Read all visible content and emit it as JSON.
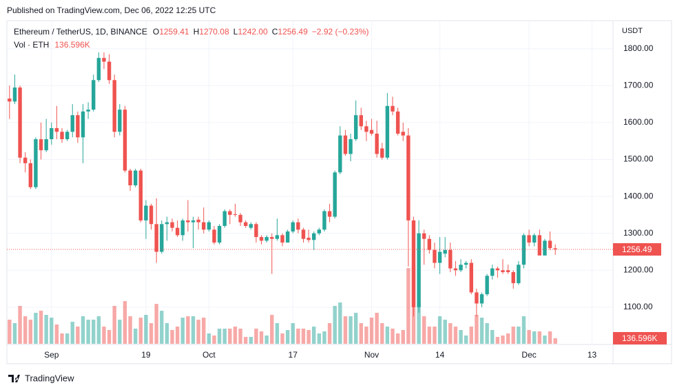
{
  "published": "Published on TradingView.com, Dec 06, 2022 12:25 UTC",
  "brand": "TradingView",
  "chart_data": {
    "type": "candlestick",
    "symbol": "Ethereum / TetherUS, 1D, BINANCE",
    "ohlc_legend": [
      {
        "key": "O",
        "text": "1259.41"
      },
      {
        "key": "H",
        "text": "1270.08"
      },
      {
        "key": "L",
        "text": "1242.00"
      },
      {
        "key": "C",
        "text": "1256.49"
      }
    ],
    "change": "−2.92 (−0.23%)",
    "volume_title": "Vol · ETH",
    "volume_legend": "136.596K",
    "y_axis_label": "USDT",
    "up_color": "#26a69a",
    "down_color": "#ef5350",
    "up_volume_color": "#26a69a80",
    "down_volume_color": "#ef535080",
    "grid": true,
    "x": [
      "2022-08-24",
      "2022-08-25",
      "2022-08-26",
      "2022-08-27",
      "2022-08-28",
      "2022-08-29",
      "2022-08-30",
      "2022-08-31",
      "2022-09-01",
      "2022-09-02",
      "2022-09-03",
      "2022-09-04",
      "2022-09-05",
      "2022-09-06",
      "2022-09-07",
      "2022-09-08",
      "2022-09-09",
      "2022-09-10",
      "2022-09-11",
      "2022-09-12",
      "2022-09-13",
      "2022-09-14",
      "2022-09-15",
      "2022-09-16",
      "2022-09-17",
      "2022-09-18",
      "2022-09-19",
      "2022-09-20",
      "2022-09-21",
      "2022-09-22",
      "2022-09-23",
      "2022-09-24",
      "2022-09-25",
      "2022-09-26",
      "2022-09-27",
      "2022-09-28",
      "2022-09-29",
      "2022-09-30",
      "2022-10-01",
      "2022-10-02",
      "2022-10-03",
      "2022-10-04",
      "2022-10-05",
      "2022-10-06",
      "2022-10-07",
      "2022-10-08",
      "2022-10-09",
      "2022-10-10",
      "2022-10-11",
      "2022-10-12",
      "2022-10-13",
      "2022-10-14",
      "2022-10-15",
      "2022-10-16",
      "2022-10-17",
      "2022-10-18",
      "2022-10-19",
      "2022-10-20",
      "2022-10-21",
      "2022-10-22",
      "2022-10-23",
      "2022-10-24",
      "2022-10-25",
      "2022-10-26",
      "2022-10-27",
      "2022-10-28",
      "2022-10-29",
      "2022-10-30",
      "2022-10-31",
      "2022-11-01",
      "2022-11-02",
      "2022-11-03",
      "2022-11-04",
      "2022-11-05",
      "2022-11-06",
      "2022-11-07",
      "2022-11-08",
      "2022-11-09",
      "2022-11-10",
      "2022-11-11",
      "2022-11-12",
      "2022-11-13",
      "2022-11-14",
      "2022-11-15",
      "2022-11-16",
      "2022-11-17",
      "2022-11-18",
      "2022-11-19",
      "2022-11-20",
      "2022-11-21",
      "2022-11-22",
      "2022-11-23",
      "2022-11-24",
      "2022-11-25",
      "2022-11-26",
      "2022-11-27",
      "2022-11-28",
      "2022-11-29",
      "2022-11-30",
      "2022-12-01",
      "2022-12-02",
      "2022-12-03",
      "2022-12-04",
      "2022-12-05",
      "2022-12-06"
    ],
    "open": [
      1665,
      1657,
      1695,
      1505,
      1490,
      1425,
      1555,
      1525,
      1555,
      1585,
      1575,
      1555,
      1575,
      1620,
      1560,
      1630,
      1635,
      1715,
      1775,
      1765,
      1715,
      1575,
      1635,
      1470,
      1430,
      1470,
      1335,
      1375,
      1325,
      1250,
      1325,
      1330,
      1315,
      1295,
      1335,
      1330,
      1337,
      1330,
      1310,
      1310,
      1275,
      1320,
      1360,
      1352,
      1350,
      1330,
      1315,
      1325,
      1290,
      1280,
      1290,
      1285,
      1295,
      1275,
      1305,
      1330,
      1310,
      1288,
      1282,
      1300,
      1310,
      1360,
      1345,
      1465,
      1565,
      1515,
      1555,
      1620,
      1590,
      1580,
      1570,
      1530,
      1505,
      1645,
      1630,
      1575,
      1565,
      1335,
      1100,
      1300,
      1285,
      1255,
      1220,
      1245,
      1255,
      1205,
      1200,
      1215,
      1220,
      1140,
      1110,
      1135,
      1185,
      1205,
      1200,
      1200,
      1195,
      1165,
      1215,
      1295,
      1275,
      1295,
      1240,
      1280,
      1259.41
    ],
    "high": [
      1700,
      1730,
      1700,
      1520,
      1500,
      1560,
      1600,
      1610,
      1600,
      1645,
      1585,
      1580,
      1650,
      1630,
      1650,
      1655,
      1730,
      1790,
      1790,
      1785,
      1730,
      1650,
      1645,
      1475,
      1475,
      1475,
      1390,
      1380,
      1395,
      1335,
      1345,
      1340,
      1335,
      1340,
      1390,
      1345,
      1345,
      1370,
      1335,
      1320,
      1325,
      1365,
      1365,
      1380,
      1355,
      1335,
      1330,
      1330,
      1295,
      1295,
      1300,
      1340,
      1300,
      1310,
      1335,
      1340,
      1315,
      1310,
      1305,
      1315,
      1365,
      1380,
      1470,
      1590,
      1580,
      1570,
      1660,
      1640,
      1605,
      1610,
      1605,
      1545,
      1680,
      1670,
      1640,
      1600,
      1585,
      1345,
      1335,
      1310,
      1295,
      1275,
      1290,
      1290,
      1275,
      1225,
      1230,
      1225,
      1230,
      1150,
      1140,
      1190,
      1215,
      1210,
      1230,
      1215,
      1200,
      1225,
      1300,
      1310,
      1300,
      1310,
      1285,
      1305,
      1270.08
    ],
    "low": [
      1610,
      1650,
      1490,
      1465,
      1420,
      1420,
      1500,
      1520,
      1540,
      1555,
      1545,
      1550,
      1560,
      1545,
      1490,
      1610,
      1630,
      1710,
      1745,
      1705,
      1560,
      1565,
      1465,
      1415,
      1425,
      1330,
      1285,
      1310,
      1220,
      1245,
      1280,
      1305,
      1290,
      1280,
      1305,
      1260,
      1310,
      1300,
      1305,
      1270,
      1270,
      1315,
      1325,
      1345,
      1320,
      1315,
      1310,
      1275,
      1270,
      1275,
      1190,
      1280,
      1265,
      1275,
      1300,
      1300,
      1275,
      1275,
      1255,
      1295,
      1305,
      1330,
      1340,
      1460,
      1510,
      1495,
      1550,
      1580,
      1550,
      1565,
      1505,
      1500,
      1500,
      1620,
      1565,
      1550,
      1210,
      1075,
      1085,
      1215,
      1245,
      1205,
      1190,
      1235,
      1195,
      1185,
      1195,
      1205,
      1135,
      1075,
      1100,
      1130,
      1175,
      1180,
      1190,
      1190,
      1150,
      1160,
      1205,
      1265,
      1265,
      1240,
      1240,
      1255,
      1242
    ],
    "close": [
      1657,
      1695,
      1505,
      1490,
      1425,
      1555,
      1525,
      1555,
      1585,
      1575,
      1555,
      1575,
      1620,
      1560,
      1630,
      1635,
      1715,
      1775,
      1765,
      1715,
      1575,
      1635,
      1470,
      1430,
      1470,
      1335,
      1375,
      1325,
      1250,
      1325,
      1330,
      1315,
      1295,
      1335,
      1330,
      1335,
      1330,
      1310,
      1330,
      1275,
      1320,
      1360,
      1350,
      1350,
      1330,
      1320,
      1325,
      1290,
      1280,
      1290,
      1285,
      1295,
      1275,
      1305,
      1330,
      1310,
      1285,
      1282,
      1300,
      1310,
      1360,
      1345,
      1465,
      1565,
      1515,
      1555,
      1620,
      1590,
      1575,
      1570,
      1515,
      1505,
      1645,
      1630,
      1570,
      1565,
      1335,
      1100,
      1300,
      1285,
      1255,
      1220,
      1250,
      1255,
      1205,
      1200,
      1215,
      1220,
      1140,
      1110,
      1135,
      1185,
      1205,
      1200,
      1195,
      1195,
      1165,
      1215,
      1295,
      1275,
      1295,
      1240,
      1280,
      1260,
      1256.49
    ],
    "volume": [
      595000,
      510000,
      935000,
      680000,
      595000,
      765000,
      816000,
      714000,
      646000,
      476000,
      255000,
      255000,
      544000,
      425000,
      680000,
      595000,
      595000,
      680000,
      425000,
      340000,
      935000,
      595000,
      1054000,
      680000,
      374000,
      646000,
      714000,
      510000,
      986000,
      816000,
      510000,
      340000,
      425000,
      646000,
      680000,
      680000,
      595000,
      646000,
      255000,
      204000,
      374000,
      374000,
      374000,
      425000,
      374000,
      170000,
      170000,
      374000,
      306000,
      204000,
      714000,
      510000,
      255000,
      340000,
      510000,
      374000,
      374000,
      340000,
      425000,
      255000,
      306000,
      510000,
      935000,
      1020000,
      680000,
      680000,
      765000,
      510000,
      425000,
      646000,
      765000,
      510000,
      425000,
      374000,
      255000,
      340000,
      1870000,
      1904000,
      1020000,
      680000,
      425000,
      425000,
      680000,
      595000,
      510000,
      425000,
      340000,
      204000,
      425000,
      714000,
      646000,
      510000,
      340000,
      170000,
      204000,
      255000,
      425000,
      425000,
      680000,
      340000,
      306000,
      306000,
      204000,
      306000,
      136596
    ],
    "xlim": [
      "2022-08-23T12:00:00Z",
      "2022-12-17T00:00:00Z"
    ],
    "xticks": [
      {
        "value": "2022-09-01",
        "label": "Sep"
      },
      {
        "value": "2022-09-19",
        "label": "19"
      },
      {
        "value": "2022-10-01",
        "label": "Oct"
      },
      {
        "value": "2022-10-17",
        "label": "17"
      },
      {
        "value": "2022-11-01",
        "label": "Nov"
      },
      {
        "value": "2022-11-14",
        "label": "14"
      },
      {
        "value": "2022-12-01",
        "label": "Dec"
      },
      {
        "value": "2022-12-13",
        "label": "13"
      }
    ],
    "ylim": [
      999,
      1876
    ],
    "yticks": [
      {
        "value": 1100,
        "label": "1100.00"
      },
      {
        "value": 1200,
        "label": "1200.00"
      },
      {
        "value": 1300,
        "label": "1300.00"
      },
      {
        "value": 1400,
        "label": "1400.00"
      },
      {
        "value": 1500,
        "label": "1500.00"
      },
      {
        "value": 1600,
        "label": "1600.00"
      },
      {
        "value": 1700,
        "label": "1700.00"
      },
      {
        "value": 1800,
        "label": "1800.00"
      }
    ],
    "volume_ylim": [
      0,
      2400000
    ],
    "price_tag": {
      "value": 1256.49,
      "label": "1256.49"
    },
    "volume_tag": {
      "value": 136596,
      "label": "136.596K"
    }
  }
}
